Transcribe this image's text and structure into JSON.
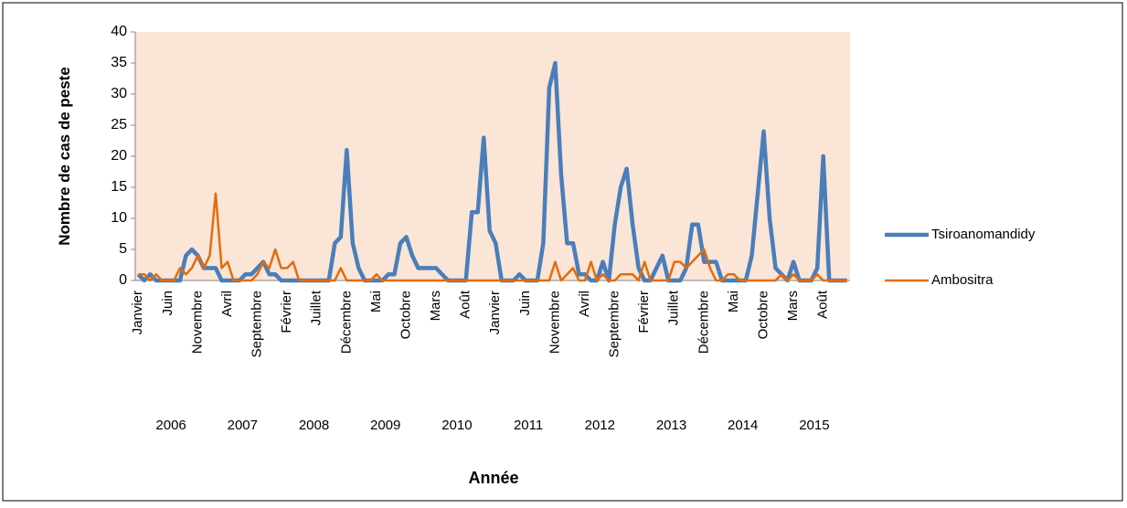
{
  "chart_data": {
    "type": "line",
    "y_label": "Nombre de cas de peste",
    "x_label": "Année",
    "categories": [
      "Janvier",
      null,
      null,
      null,
      null,
      "Juin",
      null,
      null,
      null,
      null,
      "Novembre",
      null,
      null,
      null,
      null,
      "Avril",
      null,
      null,
      null,
      null,
      "Septembre",
      null,
      null,
      null,
      null,
      "Février",
      null,
      null,
      null,
      null,
      "Juillet",
      null,
      null,
      null,
      null,
      "Décembre",
      null,
      null,
      null,
      null,
      "Mai",
      null,
      null,
      null,
      null,
      "Octobre",
      null,
      null,
      null,
      null,
      "Mars",
      null,
      null,
      null,
      null,
      "Août",
      null,
      null,
      null,
      null,
      "Janvier",
      null,
      null,
      null,
      null,
      "Juin",
      null,
      null,
      null,
      null,
      "Novembre",
      null,
      null,
      null,
      null,
      "Avril",
      null,
      null,
      null,
      null,
      "Septembre",
      null,
      null,
      null,
      null,
      "Février",
      null,
      null,
      null,
      null,
      "Juillet",
      null,
      null,
      null,
      null,
      "Décembre",
      null,
      null,
      null,
      null,
      "Mai",
      null,
      null,
      null,
      null,
      "Octobre",
      null,
      null,
      null,
      null,
      "Mars",
      null,
      null,
      null,
      null,
      "Août",
      null,
      null,
      null,
      null
    ],
    "years": [
      "2006",
      "2007",
      "2008",
      "2009",
      "2010",
      "2011",
      "2012",
      "2013",
      "2014",
      "2015"
    ],
    "series": [
      {
        "name": "Tsiroanomandidy",
        "color": "#4a7ebb",
        "values": [
          1,
          0,
          1,
          0,
          0,
          0,
          0,
          0,
          4,
          5,
          4,
          2,
          2,
          2,
          0,
          0,
          0,
          0,
          1,
          1,
          2,
          3,
          1,
          1,
          0,
          0,
          0,
          0,
          0,
          0,
          0,
          0,
          0,
          6,
          7,
          21,
          6,
          2,
          0,
          0,
          0,
          0,
          1,
          1,
          6,
          7,
          4,
          2,
          2,
          2,
          2,
          1,
          0,
          0,
          0,
          0,
          11,
          11,
          23,
          8,
          6,
          0,
          0,
          0,
          1,
          0,
          0,
          0,
          6,
          31,
          35,
          17,
          6,
          6,
          1,
          1,
          0,
          0,
          3,
          0,
          9,
          15,
          18,
          9,
          2,
          0,
          0,
          2,
          4,
          0,
          0,
          0,
          2,
          9,
          9,
          3,
          3,
          3,
          0,
          0,
          0,
          0,
          0,
          4,
          14,
          24,
          10,
          2,
          1,
          0,
          3,
          0,
          0,
          0,
          2,
          20,
          0,
          0,
          0,
          0
        ]
      },
      {
        "name": "Ambositra",
        "color": "#e36c09",
        "values": [
          1,
          1,
          0,
          1,
          0,
          0,
          0,
          2,
          1,
          2,
          4,
          2,
          4,
          14,
          2,
          3,
          0,
          0,
          0,
          0,
          1,
          3,
          2,
          5,
          2,
          2,
          3,
          0,
          0,
          0,
          0,
          0,
          0,
          0,
          2,
          0,
          0,
          0,
          0,
          0,
          1,
          0,
          0,
          0,
          0,
          0,
          0,
          0,
          0,
          0,
          0,
          0,
          0,
          0,
          0,
          0,
          0,
          0,
          0,
          0,
          0,
          0,
          0,
          0,
          0,
          0,
          0,
          0,
          0,
          0,
          3,
          0,
          1,
          2,
          0,
          0,
          3,
          0,
          1,
          0,
          0,
          1,
          1,
          1,
          0,
          3,
          0,
          0,
          0,
          0,
          3,
          3,
          2,
          3,
          4,
          5,
          2,
          0,
          0,
          1,
          1,
          0,
          0,
          0,
          0,
          0,
          0,
          0,
          1,
          0,
          1,
          0,
          0,
          0,
          1,
          0,
          0,
          0,
          0,
          0
        ]
      }
    ],
    "ylim": [
      0,
      40
    ],
    "yticks": [
      0,
      5,
      10,
      15,
      20,
      25,
      30,
      35,
      40
    ],
    "grid": false,
    "legend": "right",
    "background": "#fbe5d6"
  }
}
